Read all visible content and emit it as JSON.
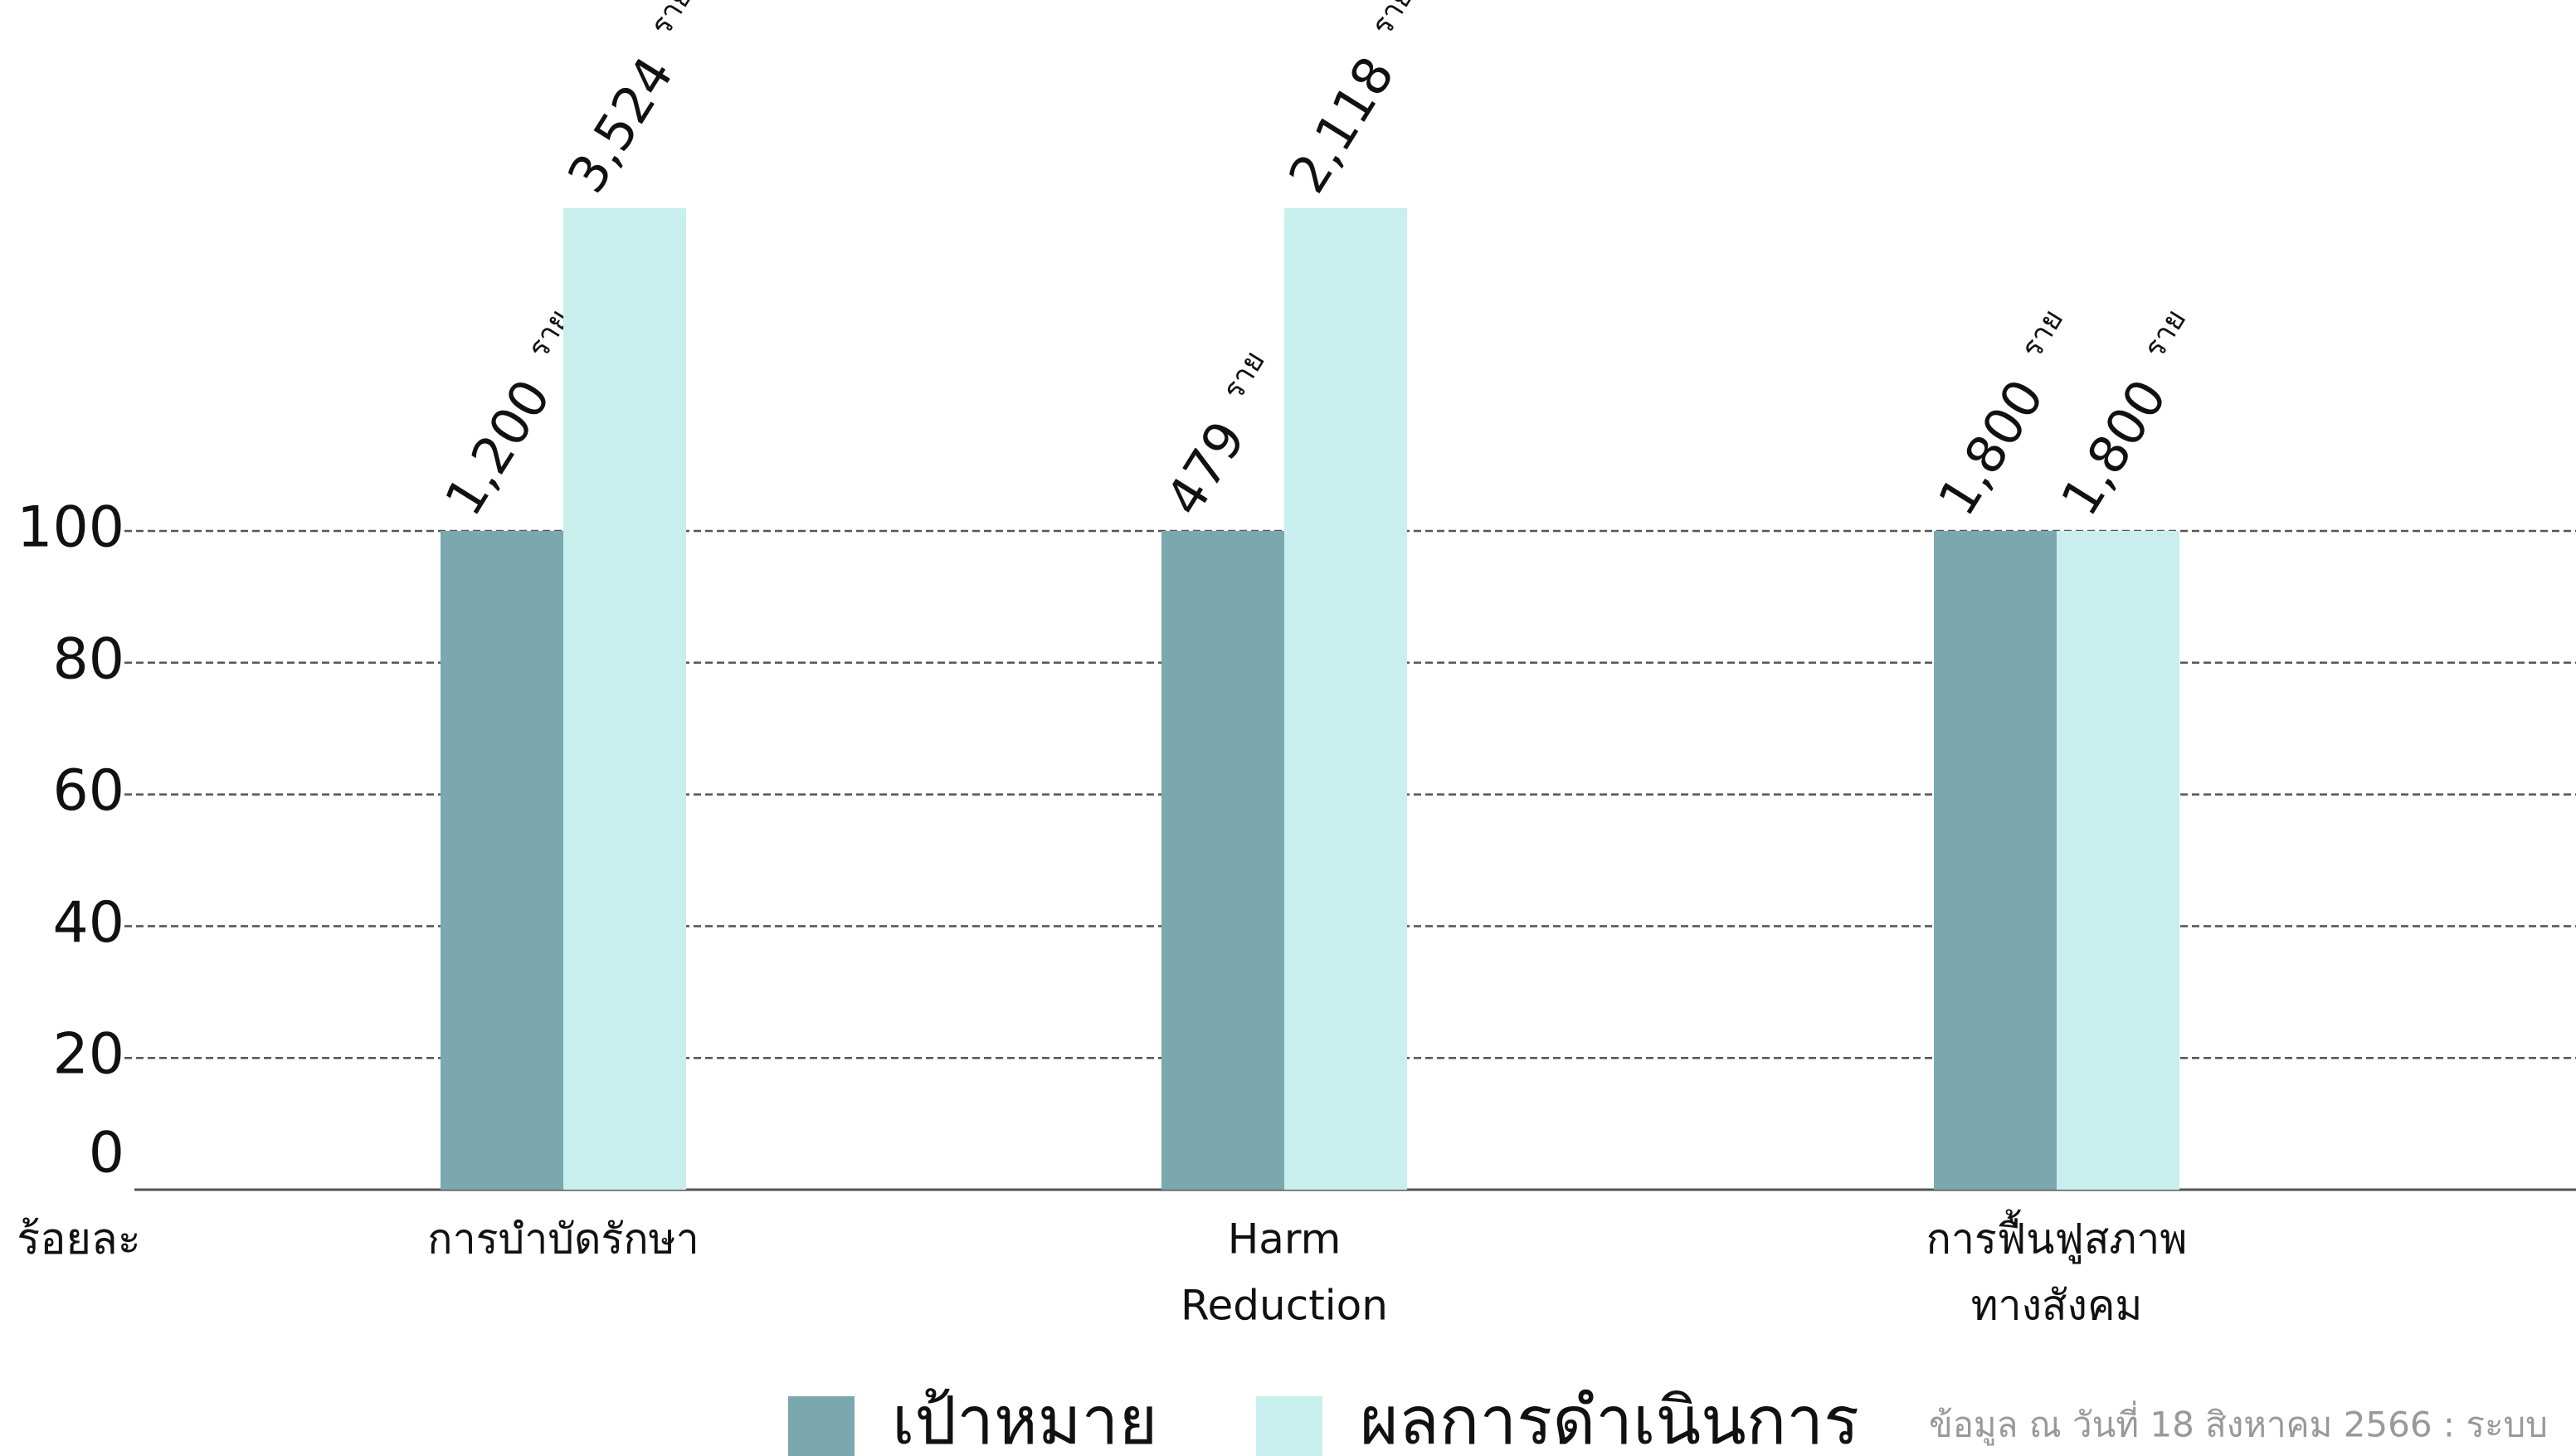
{
  "chart_data": {
    "type": "bar",
    "y_axis_label": "ร้อยละ",
    "categories": [
      [
        "การบำบัดรักษา"
      ],
      [
        "Harm",
        "Reduction"
      ],
      [
        "การฟื้นฟูสภาพ",
        "ทางสังคม"
      ]
    ],
    "series": [
      {
        "name": "เป้าหมาย",
        "color": "#7aa8ae",
        "values": [
          100,
          100,
          100
        ],
        "count_labels": [
          "1,200",
          "479",
          "1,800"
        ]
      },
      {
        "name": "ผลการดำเนินการ",
        "color": "#c8efee",
        "values": [
          149,
          149,
          100
        ],
        "count_labels": [
          "3,524",
          "2,118",
          "1,800"
        ]
      }
    ],
    "unit_label": "ราย",
    "ylim": [
      0,
      180
    ],
    "yticks": [
      0,
      20,
      40,
      60,
      80,
      100
    ],
    "grid": true,
    "footnote": "ข้อมูล ณ วันที่ 18  สิงหาคม 2566 :  ระบบ"
  }
}
